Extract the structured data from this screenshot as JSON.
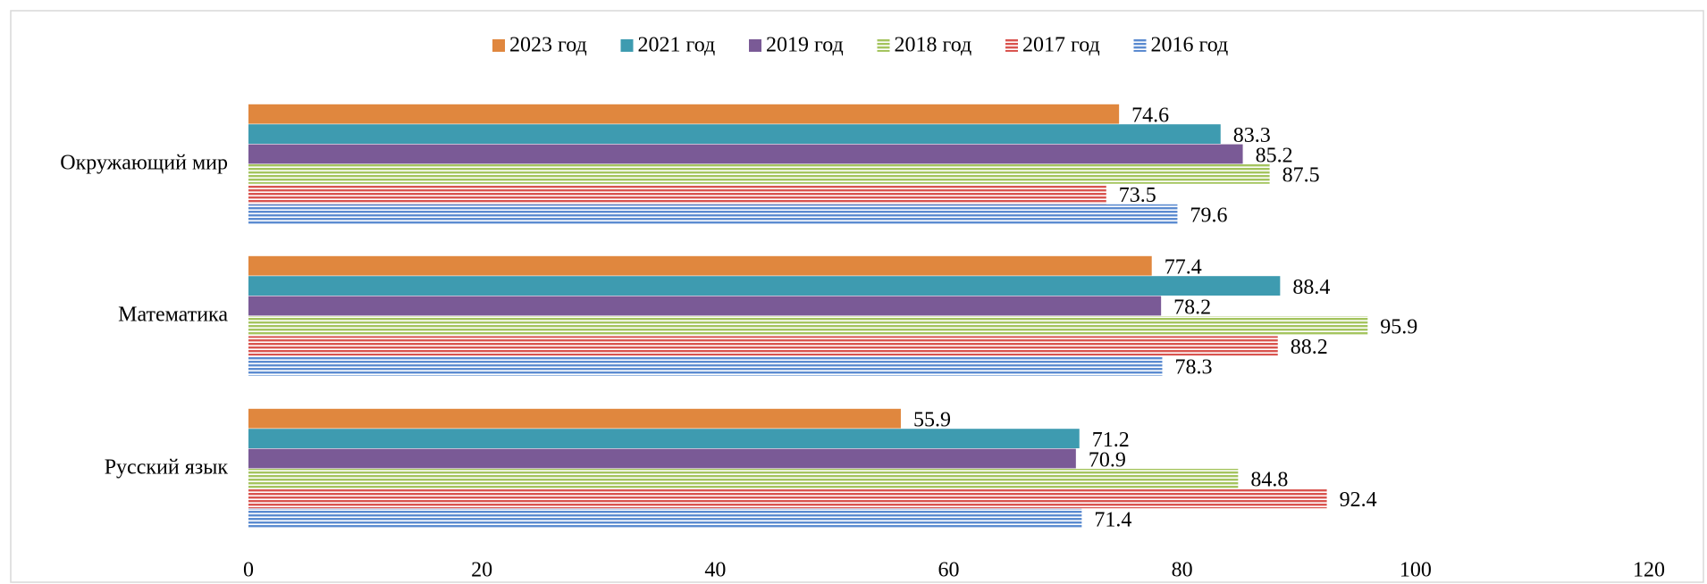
{
  "chart_data": {
    "type": "hbar",
    "categories": [
      "Окружающий мир",
      "Математика",
      "Русский язык"
    ],
    "series": [
      {
        "name": "2023 год",
        "color": "#e0873e",
        "values": [
          74.6,
          77.4,
          55.9
        ]
      },
      {
        "name": "2021 год",
        "color": "#3e9bb0",
        "values": [
          83.3,
          88.4,
          71.2
        ]
      },
      {
        "name": "2019 год",
        "color": "#7a5a96",
        "values": [
          85.2,
          78.2,
          70.9
        ]
      },
      {
        "name": "2018 год",
        "color": "#a4c45e",
        "hatch": "horizontal",
        "values": [
          87.5,
          95.9,
          84.8
        ]
      },
      {
        "name": "2017 год",
        "color": "#d9544f",
        "hatch": "horizontal",
        "values": [
          73.5,
          88.2,
          92.4
        ]
      },
      {
        "name": "2016 год",
        "color": "#5b8bd0",
        "hatch": "horizontal",
        "values": [
          79.6,
          78.3,
          71.4
        ]
      }
    ],
    "xlim": [
      0,
      120
    ],
    "xticks": [
      0,
      20,
      40,
      60,
      80,
      100,
      120
    ],
    "legend": "top",
    "grid": false
  }
}
